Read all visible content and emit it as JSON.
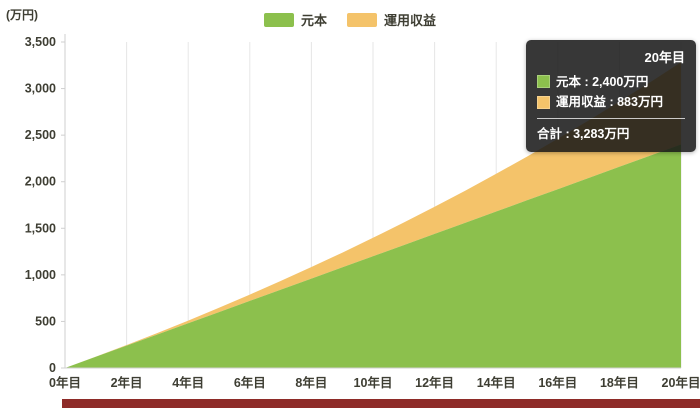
{
  "chart": {
    "unit_label": "(万円)",
    "legend": [
      {
        "label": "元本",
        "color": "#8cc04d"
      },
      {
        "label": "運用収益",
        "color": "#f4c36a"
      }
    ]
  },
  "tooltip": {
    "title": "20年目",
    "rows": [
      {
        "label": "元本",
        "value": "2,400万円",
        "text": "元本 : 2,400万円",
        "color": "#8cc04d"
      },
      {
        "label": "運用収益",
        "value": "883万円",
        "text": "運用収益 : 883万円",
        "color": "#f4c36a"
      }
    ],
    "total": {
      "label": "合計",
      "value": "3,283万円",
      "text": "合計 : 3,283万円"
    }
  },
  "colors": {
    "principal": "#8cc04d",
    "returns": "#f4c36a",
    "axis_text": "#3e3e33",
    "axis_line": "#cfcfcf",
    "gridline": "#e6e6e6",
    "tooltip_bg": "rgba(22,22,22,0.86)",
    "bottom_bar": "#8e2b28"
  },
  "chart_data": {
    "type": "area",
    "stacked": true,
    "title": "",
    "xlabel": "",
    "ylabel": "(万円)",
    "legend_position": "top",
    "grid": "vertical",
    "x": [
      0,
      1,
      2,
      3,
      4,
      5,
      6,
      7,
      8,
      9,
      10,
      11,
      12,
      13,
      14,
      15,
      16,
      17,
      18,
      19,
      20
    ],
    "x_ticks": [
      0,
      2,
      4,
      6,
      8,
      10,
      12,
      14,
      16,
      18,
      20
    ],
    "x_tick_labels": [
      "0年目",
      "2年目",
      "4年目",
      "6年目",
      "8年目",
      "10年目",
      "12年目",
      "14年目",
      "16年目",
      "18年目",
      "20年目"
    ],
    "ylim": [
      0,
      3500
    ],
    "y_ticks": [
      0,
      500,
      1000,
      1500,
      2000,
      2500,
      3000,
      3500
    ],
    "y_tick_labels": [
      "0",
      "500",
      "1,000",
      "1,500",
      "2,000",
      "2,500",
      "3,000",
      "3,500"
    ],
    "series": [
      {
        "name": "元本",
        "color": "#8cc04d",
        "values": [
          0,
          120,
          240,
          360,
          480,
          600,
          720,
          840,
          960,
          1080,
          1200,
          1320,
          1440,
          1560,
          1680,
          1800,
          1920,
          2040,
          2160,
          2280,
          2400
        ]
      },
      {
        "name": "運用収益",
        "color": "#f4c36a",
        "values": [
          0,
          2,
          7,
          16,
          29,
          47,
          68,
          94,
          124,
          158,
          198,
          242,
          291,
          345,
          405,
          470,
          541,
          617,
          700,
          788,
          883
        ]
      }
    ],
    "hover_point": {
      "x": 20,
      "principal": 2400,
      "returns": 883,
      "total": 3283
    }
  }
}
